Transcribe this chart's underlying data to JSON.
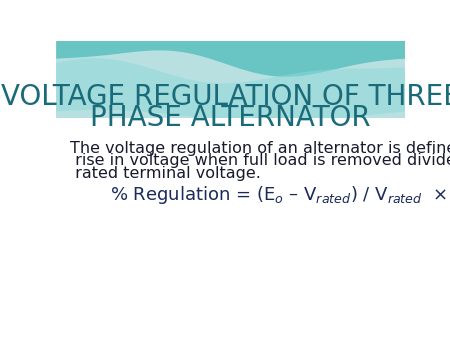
{
  "title_line1": "VOLTAGE REGULATION OF THREE",
  "title_line2": "PHASE ALTERNATOR",
  "title_color": "#1a6b7a",
  "body_text_line1": "The voltage regulation of an alternator is defined as the",
  "body_text_line2": " rise in voltage when full load is removed divided by the",
  "body_text_line3": " rated terminal voltage.",
  "body_color": "#1a1a2e",
  "bg_color": "#ffffff",
  "title_fontsize": 20,
  "body_fontsize": 11.5,
  "formula_fontsize": 13,
  "formula_color": "#1a2a5a"
}
